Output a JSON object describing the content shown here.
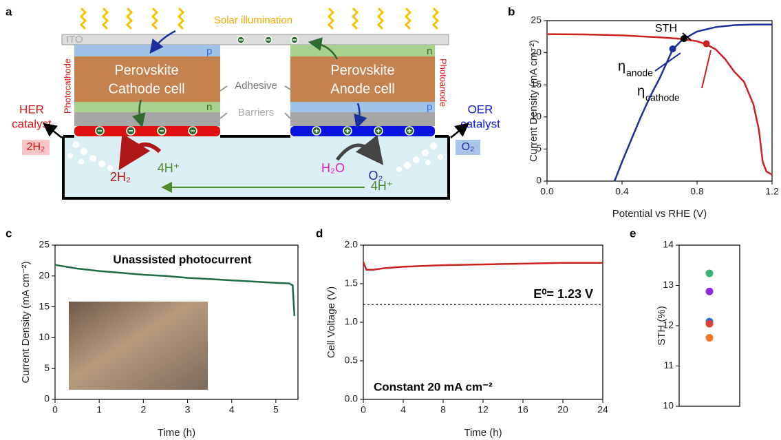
{
  "diagram": {
    "label": "a",
    "illumination": "Solar illumination",
    "ito": "ITO",
    "cathode_p": "p",
    "cathode_n": "n",
    "anode_n": "n",
    "anode_p": "p",
    "cathode_title": "Perovskite",
    "cathode_sub": "Cathode cell",
    "anode_title": "Perovskite",
    "anode_sub": "Anode cell",
    "adhesive": "Adhesive",
    "barriers": "Barriers",
    "her": [
      "HER",
      "catalyst"
    ],
    "oer": [
      "OER",
      "catalyst"
    ],
    "photocathode": "Photocathode",
    "photoanode": "Photoanode",
    "h2_out": "2H₂",
    "o2_out": "O₂",
    "h2": "2H₂",
    "h_plus": "4H⁺",
    "h2o": "H₂O",
    "o2": "O₂",
    "h_plus_flow": "4H⁺"
  },
  "chart_data": [
    {
      "label": "b",
      "type": "line",
      "x_label": "Potential vs RHE (V)",
      "y_label": "Current Density (mA cm⁻²)",
      "xlim": [
        0,
        1.2
      ],
      "xticks": [
        {
          "value": 0,
          "label": "0.0"
        },
        0.4,
        0.8,
        1.2
      ],
      "ylim": [
        0,
        25
      ],
      "yticks": [
        0,
        5,
        10,
        15,
        20,
        25
      ],
      "series": [
        {
          "color": "#cc1f1f",
          "x": [
            0,
            0.2,
            0.4,
            0.6,
            0.7,
            0.8,
            0.85,
            0.9,
            0.95,
            1.0,
            1.05,
            1.1,
            1.13,
            1.15,
            1.17,
            1.2
          ],
          "values": [
            22.9,
            22.85,
            22.7,
            22.4,
            22.2,
            21.8,
            21.3,
            20.5,
            19.0,
            17.0,
            15.5,
            12.0,
            8.0,
            3.0,
            1.5,
            1.0
          ]
        },
        {
          "color": "#1a2f9c",
          "x": [
            0.36,
            0.4,
            0.45,
            0.5,
            0.55,
            0.6,
            0.67,
            0.72,
            0.8,
            0.9,
            1.0,
            1.1,
            1.2
          ],
          "values": [
            0,
            3.0,
            6.5,
            10.0,
            13.2,
            16.0,
            20.5,
            22.0,
            23.3,
            24.0,
            24.3,
            24.4,
            24.4
          ]
        }
      ],
      "points": [
        {
          "x": 0.67,
          "y": 20.6,
          "color": "#1a2f9c"
        },
        {
          "x": 0.73,
          "y": 22.2,
          "color": "#000000"
        },
        {
          "x": 0.85,
          "y": 21.4,
          "color": "#cc1f1f"
        }
      ],
      "annotations": [
        "STH",
        "η",
        "anode",
        "η",
        "cathode"
      ]
    },
    {
      "label": "c",
      "type": "line",
      "x_label": "Time (h)",
      "y_label": "Current Density (mA cm⁻²)",
      "xlim": [
        0,
        5.5
      ],
      "xticks": [
        0,
        1,
        2,
        3,
        4,
        5
      ],
      "ylim": [
        0,
        25
      ],
      "yticks": [
        0,
        5,
        10,
        15,
        20,
        25
      ],
      "series": [
        {
          "color": "#1e6b45",
          "x": [
            0,
            0.5,
            1,
            1.5,
            2,
            2.5,
            3,
            3.5,
            4,
            4.5,
            5,
            5.3,
            5.38,
            5.42
          ],
          "values": [
            21.8,
            21.2,
            20.8,
            20.5,
            20.2,
            20.0,
            19.7,
            19.5,
            19.3,
            19.1,
            18.9,
            18.8,
            18.5,
            13.5
          ]
        }
      ],
      "annotations": [
        "Unassisted photocurrent"
      ]
    },
    {
      "label": "d",
      "type": "line",
      "x_label": "Time (h)",
      "y_label": "Cell Voltage (V)",
      "xlim": [
        0,
        24
      ],
      "xticks": [
        0,
        4,
        8,
        12,
        16,
        20,
        24
      ],
      "ylim": [
        0,
        2
      ],
      "yticks": [
        {
          "value": 0,
          "label": "0.0"
        },
        0.5,
        {
          "value": 1,
          "label": "1.0"
        },
        1.5,
        {
          "value": 2,
          "label": "2.0"
        }
      ],
      "series": [
        {
          "color": "#cc1f1f",
          "x": [
            0,
            0.3,
            1,
            2,
            4,
            8,
            12,
            16,
            20,
            24
          ],
          "values": [
            1.78,
            1.68,
            1.68,
            1.7,
            1.72,
            1.74,
            1.75,
            1.76,
            1.77,
            1.77
          ]
        }
      ],
      "reference_line": {
        "value": 1.23,
        "label": "E⁰= 1.23 V"
      },
      "annotations": [
        "Constant 20 mA cm⁻²"
      ]
    },
    {
      "label": "e",
      "type": "dot",
      "y_label": "STH (%)",
      "ylim": [
        10,
        14
      ],
      "yticks": [
        10,
        11,
        12,
        13,
        14
      ],
      "values": [
        13.3,
        12.85,
        12.1,
        12.05,
        11.7
      ],
      "colors": [
        "#3cb371",
        "#8a2be2",
        "#1f6fd0",
        "#e0403a",
        "#f07820"
      ]
    }
  ]
}
